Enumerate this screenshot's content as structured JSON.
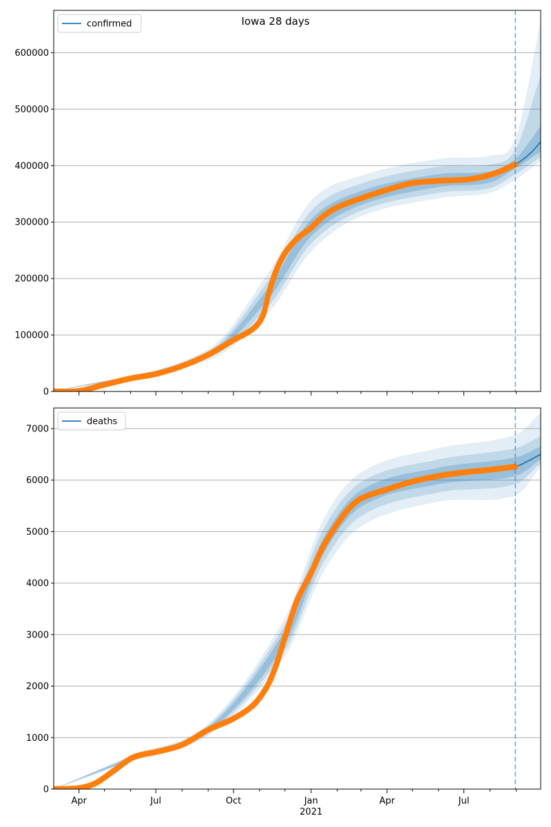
{
  "title": "Iowa 28 days",
  "chart_data": [
    {
      "type": "line",
      "legend": {
        "label": "confirmed",
        "placement": "top-left"
      },
      "x_range": [
        "2020-03-02",
        "2021-09-30"
      ],
      "ylim": [
        0,
        675000
      ],
      "yticks": [
        0,
        100000,
        200000,
        300000,
        400000,
        500000,
        600000
      ],
      "ytick_labels": [
        "0",
        "100000",
        "200000",
        "300000",
        "400000",
        "500000",
        "600000"
      ],
      "grid": "horizontal",
      "forecast_start": "2021-08-31",
      "series": [
        {
          "name": "confirmed",
          "role": "fit",
          "color": "#1f77b4",
          "points": [
            [
              "2020-03-02",
              0
            ],
            [
              "2020-04-01",
              1000
            ],
            [
              "2020-05-01",
              12000
            ],
            [
              "2020-06-01",
              23000
            ],
            [
              "2020-07-01",
              31000
            ],
            [
              "2020-08-01",
              45000
            ],
            [
              "2020-09-01",
              65000
            ],
            [
              "2020-10-01",
              91000
            ],
            [
              "2020-10-25",
              112000
            ],
            [
              "2020-11-05",
              135000
            ],
            [
              "2020-11-12",
              175000
            ],
            [
              "2020-11-20",
              212000
            ],
            [
              "2020-12-01",
              245000
            ],
            [
              "2020-12-15",
              270000
            ],
            [
              "2021-01-01",
              290000
            ],
            [
              "2021-01-15",
              310000
            ],
            [
              "2021-02-01",
              326000
            ],
            [
              "2021-03-01",
              342000
            ],
            [
              "2021-04-01",
              357000
            ],
            [
              "2021-05-01",
              369000
            ],
            [
              "2021-06-01",
              373000
            ],
            [
              "2021-07-01",
              375000
            ],
            [
              "2021-07-20",
              379000
            ],
            [
              "2021-08-10",
              388000
            ],
            [
              "2021-08-31",
              402000
            ],
            [
              "2021-09-10",
              412000
            ],
            [
              "2021-09-20",
              425000
            ],
            [
              "2021-09-30",
              442000
            ]
          ]
        },
        {
          "name": "observed",
          "role": "observed",
          "color": "#ff7f0e",
          "points": [
            [
              "2020-03-02",
              0
            ],
            [
              "2020-04-01",
              1000
            ],
            [
              "2020-05-01",
              12000
            ],
            [
              "2020-06-01",
              23000
            ],
            [
              "2020-07-01",
              31000
            ],
            [
              "2020-08-01",
              45000
            ],
            [
              "2020-09-01",
              65000
            ],
            [
              "2020-10-01",
              91000
            ],
            [
              "2020-10-25",
              112000
            ],
            [
              "2020-11-05",
              135000
            ],
            [
              "2020-11-12",
              175000
            ],
            [
              "2020-11-20",
              212000
            ],
            [
              "2020-12-01",
              245000
            ],
            [
              "2020-12-15",
              270000
            ],
            [
              "2021-01-01",
              290000
            ],
            [
              "2021-01-15",
              310000
            ],
            [
              "2021-02-01",
              326000
            ],
            [
              "2021-03-01",
              342000
            ],
            [
              "2021-04-01",
              357000
            ],
            [
              "2021-05-01",
              369000
            ],
            [
              "2021-06-01",
              373000
            ],
            [
              "2021-07-01",
              375000
            ],
            [
              "2021-07-20",
              379000
            ],
            [
              "2021-08-10",
              388000
            ],
            [
              "2021-08-31",
              402000
            ]
          ]
        }
      ],
      "intervals": [
        {
          "level": "inner",
          "lower": [
            [
              "2020-03-02",
              0
            ],
            [
              "2020-09-01",
              62000
            ],
            [
              "2020-11-12",
              165000
            ],
            [
              "2021-01-01",
              275000
            ],
            [
              "2021-03-01",
              330000
            ],
            [
              "2021-06-01",
              362000
            ],
            [
              "2021-08-01",
              370000
            ],
            [
              "2021-08-31",
              395000
            ],
            [
              "2021-09-30",
              425000
            ]
          ],
          "upper": [
            [
              "2020-03-02",
              0
            ],
            [
              "2020-09-01",
              68000
            ],
            [
              "2020-11-12",
              185000
            ],
            [
              "2021-01-01",
              305000
            ],
            [
              "2021-03-01",
              355000
            ],
            [
              "2021-06-01",
              385000
            ],
            [
              "2021-08-01",
              390000
            ],
            [
              "2021-08-31",
              412000
            ],
            [
              "2021-09-30",
              470000
            ]
          ]
        },
        {
          "level": "middle",
          "lower": [
            [
              "2020-03-02",
              0
            ],
            [
              "2020-09-01",
              59000
            ],
            [
              "2020-11-12",
              152000
            ],
            [
              "2021-01-01",
              262000
            ],
            [
              "2021-03-01",
              320000
            ],
            [
              "2021-06-01",
              352000
            ],
            [
              "2021-08-01",
              360000
            ],
            [
              "2021-08-31",
              385000
            ],
            [
              "2021-09-30",
              415000
            ]
          ],
          "upper": [
            [
              "2020-03-02",
              0
            ],
            [
              "2020-09-01",
              71000
            ],
            [
              "2020-11-12",
              198000
            ],
            [
              "2021-01-01",
              320000
            ],
            [
              "2021-03-01",
              368000
            ],
            [
              "2021-06-01",
              398000
            ],
            [
              "2021-08-01",
              402000
            ],
            [
              "2021-08-31",
              428000
            ],
            [
              "2021-09-30",
              560000
            ]
          ]
        },
        {
          "level": "outer",
          "lower": [
            [
              "2020-03-02",
              0
            ],
            [
              "2020-09-01",
              55000
            ],
            [
              "2020-11-12",
              140000
            ],
            [
              "2021-01-01",
              248000
            ],
            [
              "2021-03-01",
              310000
            ],
            [
              "2021-06-01",
              342000
            ],
            [
              "2021-08-01",
              352000
            ],
            [
              "2021-08-31",
              375000
            ],
            [
              "2021-09-30",
              408000
            ]
          ],
          "upper": [
            [
              "2020-03-02",
              0
            ],
            [
              "2020-09-01",
              75000
            ],
            [
              "2020-11-12",
              212000
            ],
            [
              "2021-01-01",
              338000
            ],
            [
              "2021-03-01",
              382000
            ],
            [
              "2021-06-01",
              412000
            ],
            [
              "2021-08-01",
              418000
            ],
            [
              "2021-08-31",
              448000
            ],
            [
              "2021-09-30",
              655000
            ]
          ]
        }
      ]
    },
    {
      "type": "line",
      "legend": {
        "label": "deaths",
        "placement": "top-left"
      },
      "x_range": [
        "2020-03-02",
        "2021-09-30"
      ],
      "ylim": [
        0,
        7400
      ],
      "yticks": [
        0,
        1000,
        2000,
        3000,
        4000,
        5000,
        6000,
        7000
      ],
      "ytick_labels": [
        "0",
        "1000",
        "2000",
        "3000",
        "4000",
        "5000",
        "6000",
        "7000"
      ],
      "xtick_labels": [
        "Apr",
        "Jul",
        "Oct",
        "Jan",
        "Apr",
        "Jul"
      ],
      "xtick_dates": [
        "2020-04-01",
        "2020-07-01",
        "2020-10-01",
        "2021-01-01",
        "2021-04-01",
        "2021-07-01"
      ],
      "year_label": {
        "text": "2021",
        "date": "2021-01-01"
      },
      "grid": "horizontal",
      "forecast_start": "2021-08-31",
      "series": [
        {
          "name": "deaths",
          "role": "fit",
          "color": "#1f77b4",
          "points": [
            [
              "2020-03-02",
              0
            ],
            [
              "2020-04-01",
              20
            ],
            [
              "2020-04-20",
              110
            ],
            [
              "2020-05-10",
              330
            ],
            [
              "2020-06-01",
              590
            ],
            [
              "2020-06-15",
              670
            ],
            [
              "2020-07-01",
              720
            ],
            [
              "2020-08-01",
              860
            ],
            [
              "2020-09-01",
              1150
            ],
            [
              "2020-10-01",
              1370
            ],
            [
              "2020-10-25",
              1640
            ],
            [
              "2020-11-10",
              2000
            ],
            [
              "2020-11-20",
              2380
            ],
            [
              "2020-12-01",
              2950
            ],
            [
              "2020-12-15",
              3650
            ],
            [
              "2021-01-01",
              4200
            ],
            [
              "2021-01-15",
              4700
            ],
            [
              "2021-02-01",
              5150
            ],
            [
              "2021-02-15",
              5450
            ],
            [
              "2021-03-01",
              5640
            ],
            [
              "2021-04-01",
              5820
            ],
            [
              "2021-05-01",
              5970
            ],
            [
              "2021-06-01",
              6080
            ],
            [
              "2021-07-01",
              6150
            ],
            [
              "2021-08-01",
              6200
            ],
            [
              "2021-08-31",
              6260
            ],
            [
              "2021-09-15",
              6370
            ],
            [
              "2021-09-30",
              6500
            ]
          ]
        },
        {
          "name": "observed",
          "role": "observed",
          "color": "#ff7f0e",
          "points": [
            [
              "2020-03-02",
              0
            ],
            [
              "2020-04-01",
              20
            ],
            [
              "2020-04-20",
              110
            ],
            [
              "2020-05-10",
              330
            ],
            [
              "2020-06-01",
              590
            ],
            [
              "2020-06-15",
              670
            ],
            [
              "2020-07-01",
              720
            ],
            [
              "2020-08-01",
              860
            ],
            [
              "2020-09-01",
              1150
            ],
            [
              "2020-10-01",
              1370
            ],
            [
              "2020-10-25",
              1640
            ],
            [
              "2020-11-10",
              2000
            ],
            [
              "2020-11-20",
              2380
            ],
            [
              "2020-12-01",
              2950
            ],
            [
              "2020-12-15",
              3650
            ],
            [
              "2021-01-01",
              4200
            ],
            [
              "2021-01-15",
              4700
            ],
            [
              "2021-02-01",
              5150
            ],
            [
              "2021-02-15",
              5450
            ],
            [
              "2021-03-01",
              5640
            ],
            [
              "2021-04-01",
              5820
            ],
            [
              "2021-05-01",
              5970
            ],
            [
              "2021-06-01",
              6080
            ],
            [
              "2021-07-01",
              6150
            ],
            [
              "2021-08-01",
              6200
            ],
            [
              "2021-08-31",
              6260
            ]
          ]
        }
      ],
      "intervals": [
        {
          "level": "inner",
          "lower": [
            [
              "2020-03-02",
              0
            ],
            [
              "2020-06-01",
              570
            ],
            [
              "2020-09-01",
              1110
            ],
            [
              "2020-12-01",
              2820
            ],
            [
              "2021-01-15",
              4550
            ],
            [
              "2021-03-01",
              5480
            ],
            [
              "2021-06-01",
              5920
            ],
            [
              "2021-08-31",
              6080
            ],
            [
              "2021-09-30",
              6400
            ]
          ],
          "upper": [
            [
              "2020-03-02",
              0
            ],
            [
              "2020-06-01",
              610
            ],
            [
              "2020-09-01",
              1190
            ],
            [
              "2020-12-01",
              3080
            ],
            [
              "2021-01-15",
              4850
            ],
            [
              "2021-03-01",
              5800
            ],
            [
              "2021-06-01",
              6240
            ],
            [
              "2021-08-31",
              6440
            ],
            [
              "2021-09-30",
              6650
            ]
          ]
        },
        {
          "level": "middle",
          "lower": [
            [
              "2020-03-02",
              0
            ],
            [
              "2020-06-01",
              550
            ],
            [
              "2020-09-01",
              1080
            ],
            [
              "2020-12-01",
              2700
            ],
            [
              "2021-01-15",
              4380
            ],
            [
              "2021-03-01",
              5300
            ],
            [
              "2021-06-01",
              5760
            ],
            [
              "2021-08-31",
              5920
            ],
            [
              "2021-09-30",
              6330
            ]
          ],
          "upper": [
            [
              "2020-03-02",
              0
            ],
            [
              "2020-06-01",
              630
            ],
            [
              "2020-09-01",
              1230
            ],
            [
              "2020-12-01",
              3200
            ],
            [
              "2021-01-15",
              5030
            ],
            [
              "2021-03-01",
              5960
            ],
            [
              "2021-06-01",
              6400
            ],
            [
              "2021-08-31",
              6620
            ],
            [
              "2021-09-30",
              6850
            ]
          ]
        },
        {
          "level": "outer",
          "lower": [
            [
              "2020-03-02",
              0
            ],
            [
              "2020-06-01",
              530
            ],
            [
              "2020-09-01",
              1040
            ],
            [
              "2020-12-01",
              2580
            ],
            [
              "2021-01-15",
              4200
            ],
            [
              "2021-03-01",
              5100
            ],
            [
              "2021-06-01",
              5580
            ],
            [
              "2021-08-31",
              5700
            ],
            [
              "2021-09-30",
              6250
            ]
          ],
          "upper": [
            [
              "2020-03-02",
              0
            ],
            [
              "2020-06-01",
              650
            ],
            [
              "2020-09-01",
              1270
            ],
            [
              "2020-12-01",
              3330
            ],
            [
              "2021-01-15",
              5220
            ],
            [
              "2021-03-01",
              6150
            ],
            [
              "2021-06-01",
              6620
            ],
            [
              "2021-08-31",
              6880
            ],
            [
              "2021-09-30",
              7300
            ]
          ]
        }
      ]
    }
  ]
}
